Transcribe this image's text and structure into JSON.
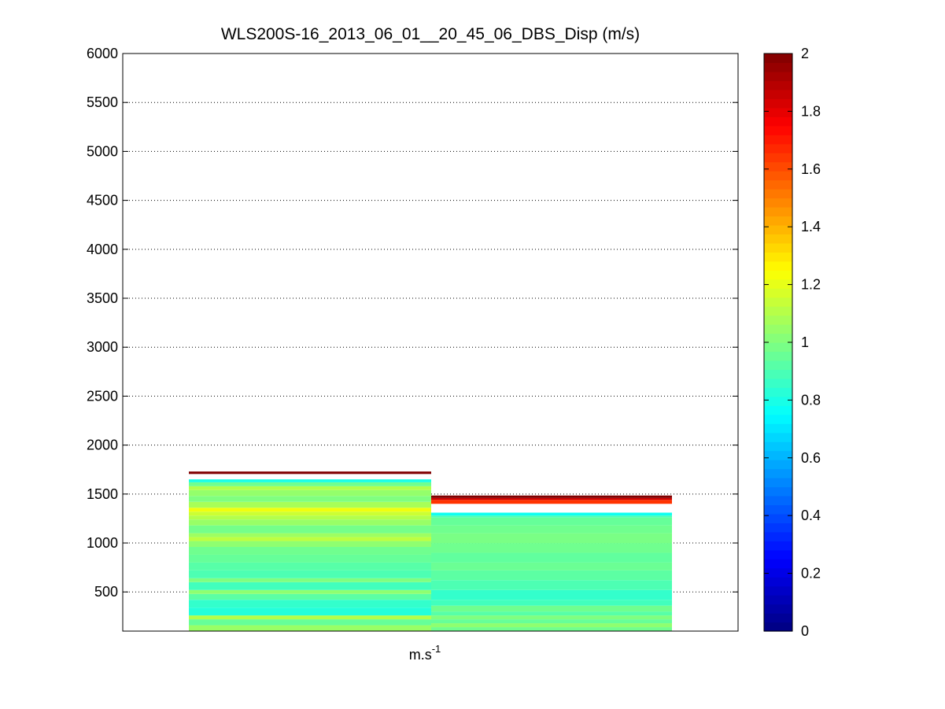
{
  "chart_data": {
    "type": "heatmap",
    "title": "WLS200S-16_2013_06_01__20_45_06_DBS_Disp (m/s)",
    "xlabel": "m.s-1",
    "xlabel_base": "m.s",
    "xlabel_sup": "-1",
    "ylabel": "",
    "ylim": [
      100,
      6000
    ],
    "y_ticks": [
      500,
      1000,
      1500,
      2000,
      2500,
      3000,
      3500,
      4000,
      4500,
      5000,
      5500,
      6000
    ],
    "y_tick_labels": [
      "500",
      "1000",
      "1500",
      "2000",
      "2500",
      "3000",
      "3500",
      "4000",
      "4500",
      "5000",
      "5500",
      "6000"
    ],
    "grid": true,
    "colormap": "jet",
    "clim": [
      0,
      2
    ],
    "colorbar": {
      "position": "right",
      "ticks": [
        0,
        0.2,
        0.4,
        0.6,
        0.8,
        1,
        1.2,
        1.4,
        1.6,
        1.8,
        2
      ],
      "tick_labels": [
        "0",
        "0.2",
        "0.4",
        "0.6",
        "0.8",
        "1",
        "1.2",
        "1.4",
        "1.6",
        "1.8",
        "2"
      ]
    },
    "columns": [
      {
        "layers": [
          {
            "y": [
              100,
              160
            ],
            "v": 1.05
          },
          {
            "y": [
              160,
              220
            ],
            "v": 0.95
          },
          {
            "y": [
              220,
              260
            ],
            "v": 1.1
          },
          {
            "y": [
              260,
              340
            ],
            "v": 0.82
          },
          {
            "y": [
              340,
              420
            ],
            "v": 0.85
          },
          {
            "y": [
              420,
              480
            ],
            "v": 0.93
          },
          {
            "y": [
              480,
              520
            ],
            "v": 1.03
          },
          {
            "y": [
              520,
              600
            ],
            "v": 0.88
          },
          {
            "y": [
              600,
              640
            ],
            "v": 1.0
          },
          {
            "y": [
              640,
              720
            ],
            "v": 0.9
          },
          {
            "y": [
              720,
              800
            ],
            "v": 0.92
          },
          {
            "y": [
              800,
              880
            ],
            "v": 0.95
          },
          {
            "y": [
              880,
              960
            ],
            "v": 0.97
          },
          {
            "y": [
              960,
              1020
            ],
            "v": 1.03
          },
          {
            "y": [
              1020,
              1060
            ],
            "v": 1.12
          },
          {
            "y": [
              1060,
              1100
            ],
            "v": 1.06
          },
          {
            "y": [
              1100,
              1180
            ],
            "v": 0.98
          },
          {
            "y": [
              1180,
              1240
            ],
            "v": 1.05
          },
          {
            "y": [
              1240,
              1280
            ],
            "v": 1.1
          },
          {
            "y": [
              1280,
              1320
            ],
            "v": 1.15
          },
          {
            "y": [
              1320,
              1360
            ],
            "v": 1.22
          },
          {
            "y": [
              1360,
              1420
            ],
            "v": 1.08
          },
          {
            "y": [
              1420,
              1480
            ],
            "v": 1.0
          },
          {
            "y": [
              1480,
              1540
            ],
            "v": 1.04
          },
          {
            "y": [
              1540,
              1580
            ],
            "v": 1.1
          },
          {
            "y": [
              1580,
              1620
            ],
            "v": 0.97
          },
          {
            "y": [
              1620,
              1650
            ],
            "v": 0.8
          },
          {
            "y": [
              1705,
              1730
            ],
            "v": 2.0
          }
        ]
      },
      {
        "layers": [
          {
            "y": [
              100,
              140
            ],
            "v": 0.97
          },
          {
            "y": [
              140,
              180
            ],
            "v": 1.03
          },
          {
            "y": [
              180,
              220
            ],
            "v": 0.95
          },
          {
            "y": [
              220,
              260
            ],
            "v": 1.0
          },
          {
            "y": [
              260,
              300
            ],
            "v": 0.92
          },
          {
            "y": [
              300,
              360
            ],
            "v": 0.97
          },
          {
            "y": [
              360,
              420
            ],
            "v": 0.88
          },
          {
            "y": [
              420,
              520
            ],
            "v": 0.85
          },
          {
            "y": [
              520,
              620
            ],
            "v": 0.9
          },
          {
            "y": [
              620,
              720
            ],
            "v": 0.93
          },
          {
            "y": [
              720,
              800
            ],
            "v": 0.96
          },
          {
            "y": [
              800,
              900
            ],
            "v": 0.94
          },
          {
            "y": [
              900,
              1000
            ],
            "v": 0.97
          },
          {
            "y": [
              1000,
              1100
            ],
            "v": 0.99
          },
          {
            "y": [
              1100,
              1180
            ],
            "v": 0.97
          },
          {
            "y": [
              1180,
              1260
            ],
            "v": 0.95
          },
          {
            "y": [
              1260,
              1280
            ],
            "v": 0.9
          },
          {
            "y": [
              1280,
              1310
            ],
            "v": 0.78
          },
          {
            "y": [
              1400,
              1440
            ],
            "v": 1.65
          },
          {
            "y": [
              1440,
              1460
            ],
            "v": 1.85
          },
          {
            "y": [
              1460,
              1485
            ],
            "v": 2.0
          }
        ]
      }
    ]
  }
}
